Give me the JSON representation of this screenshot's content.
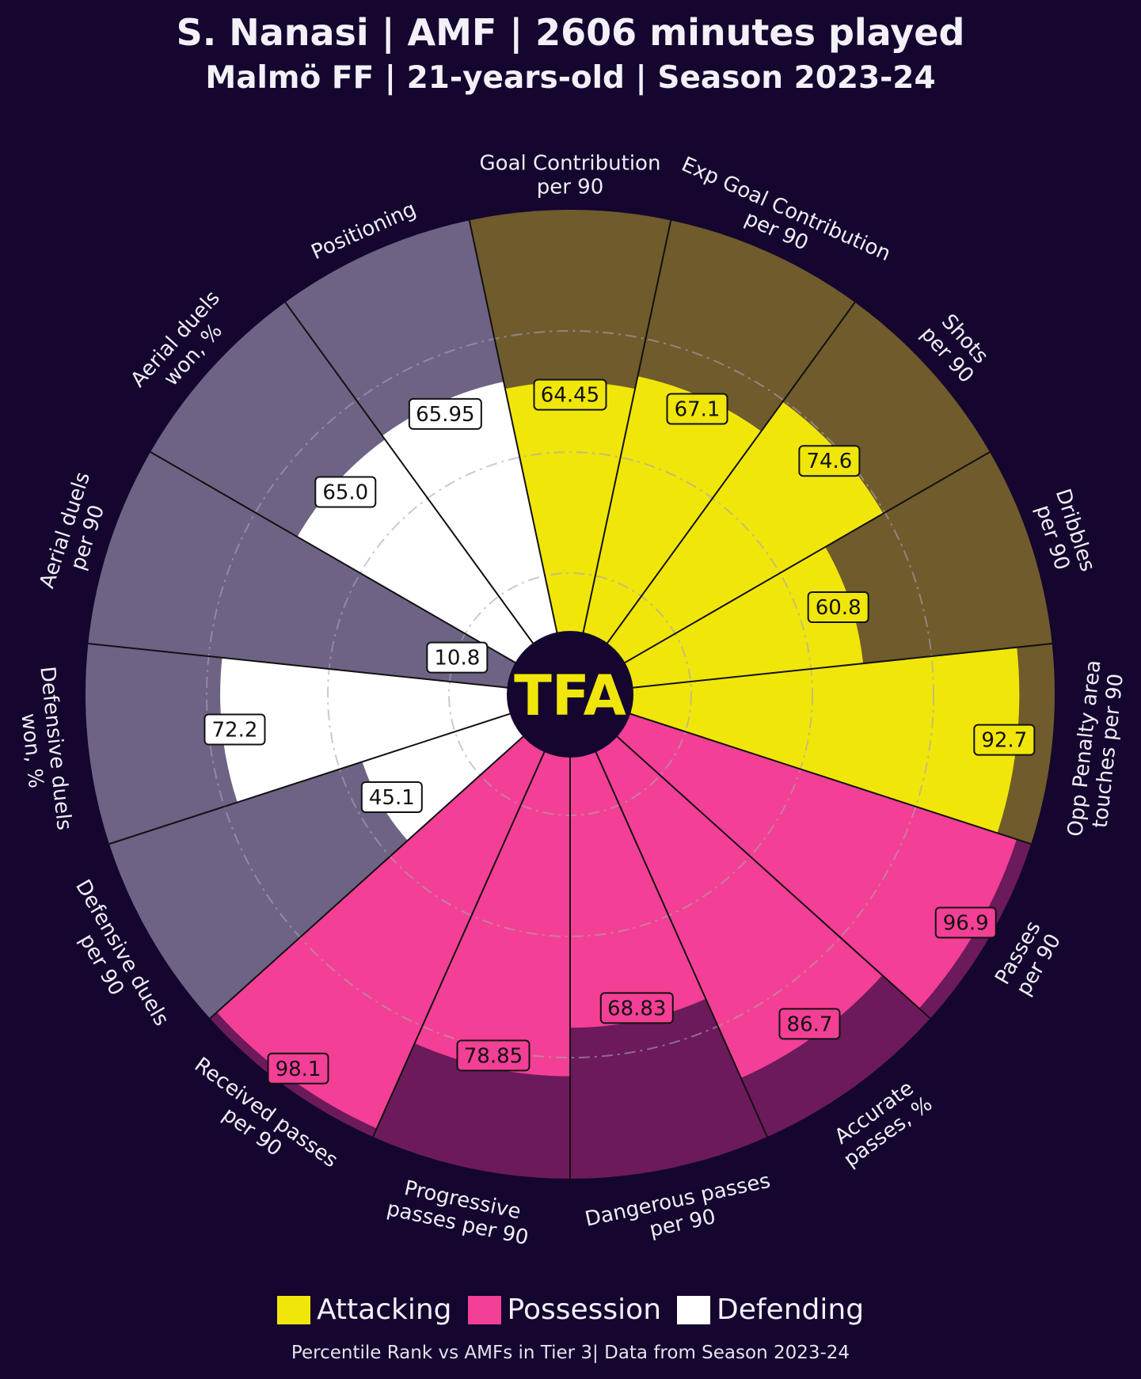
{
  "header": {
    "title": "S. Nanasi | AMF | 2606 minutes played",
    "subtitle": "Malmö FF | 21-years-old | Season 2023-24"
  },
  "logo": {
    "text": "TFA"
  },
  "legend": [
    {
      "label": "Attacking",
      "color": "#f0e60a"
    },
    {
      "label": "Possession",
      "color": "#f43f96"
    },
    {
      "label": "Defending",
      "color": "#ffffff"
    }
  ],
  "footer": "Percentile Rank vs AMFs in Tier 3| Data from Season 2023-24",
  "chart_data": {
    "type": "pie-radar",
    "range": [
      0,
      100
    ],
    "grid_rings": [
      25,
      50,
      75
    ],
    "categories": [
      {
        "label": [
          "Goal Contribution",
          "per 90"
        ],
        "value": 64.45,
        "group": "Attacking"
      },
      {
        "label": [
          "Exp Goal Contribution",
          "per 90"
        ],
        "value": 67.1,
        "group": "Attacking"
      },
      {
        "label": [
          "Shots",
          "per 90"
        ],
        "value": 74.6,
        "group": "Attacking"
      },
      {
        "label": [
          "Dribbles",
          "per 90"
        ],
        "value": 60.8,
        "group": "Attacking"
      },
      {
        "label": [
          "Opp Penalty area",
          "touches per 90"
        ],
        "value": 92.7,
        "group": "Attacking"
      },
      {
        "label": [
          "Passes",
          "per 90"
        ],
        "value": 96.9,
        "group": "Possession"
      },
      {
        "label": [
          "Accurate",
          "passes, %"
        ],
        "value": 86.7,
        "group": "Possession"
      },
      {
        "label": [
          "Dangerous passes",
          "per 90"
        ],
        "value": 68.83,
        "group": "Possession"
      },
      {
        "label": [
          "Progressive",
          "passes per 90"
        ],
        "value": 78.85,
        "group": "Possession"
      },
      {
        "label": [
          "Received passes",
          "per 90"
        ],
        "value": 98.1,
        "group": "Possession"
      },
      {
        "label": [
          "Defensive duels",
          "per 90"
        ],
        "value": 45.1,
        "group": "Defending"
      },
      {
        "label": [
          "Defensive duels",
          "won, %"
        ],
        "value": 72.2,
        "group": "Defending"
      },
      {
        "label": [
          "Aerial duels",
          "per 90"
        ],
        "value": 10.8,
        "group": "Defending"
      },
      {
        "label": [
          "Aerial duels",
          "won, %"
        ],
        "value": 65.0,
        "group": "Defending"
      },
      {
        "label": [
          "Positioning"
        ],
        "value": 65.95,
        "group": "Defending"
      }
    ],
    "group_colors": {
      "Attacking": {
        "fill": "#f0e60a",
        "bg": "#6f5b2c",
        "box": "#f0e60a"
      },
      "Possession": {
        "fill": "#f43f96",
        "bg": "#6c1a5c",
        "box": "#f43f96"
      },
      "Defending": {
        "fill": "#ffffff",
        "bg": "#6e6384",
        "box": "#ffffff"
      }
    }
  }
}
